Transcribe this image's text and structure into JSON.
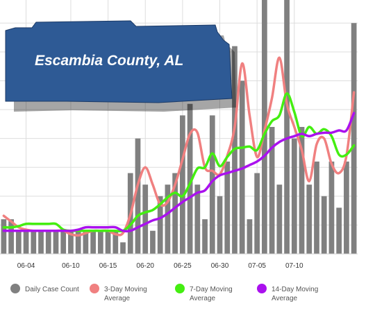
{
  "banner": {
    "title": "Escambia County, AL",
    "background": "#2e5a95"
  },
  "colors": {
    "bars": "#808080",
    "ma3": "#f08080",
    "ma7": "#44ee11",
    "ma14": "#aa11ee",
    "grid": "#dddddd"
  },
  "legend": [
    {
      "key": "bars",
      "line1": "Daily Case Count",
      "line2": ""
    },
    {
      "key": "ma3",
      "line1": "3-Day Moving",
      "line2": "Average"
    },
    {
      "key": "ma7",
      "line1": "7-Day Moving",
      "line2": "Average"
    },
    {
      "key": "ma14",
      "line1": "14-Day Moving",
      "line2": "Average"
    }
  ],
  "chart_data": {
    "type": "bar",
    "title": "Escambia County, AL",
    "x_tick_labels": [
      "06-04",
      "06-10",
      "06-15",
      "06-20",
      "06-25",
      "06-30",
      "07-05",
      "07-10"
    ],
    "x_tick_index": [
      3,
      9,
      14,
      19,
      24,
      29,
      34,
      39
    ],
    "ylim": [
      0,
      22
    ],
    "grid": true,
    "legend_position": "bottom",
    "series": [
      {
        "name": "Daily Case Count",
        "type": "bar",
        "values": [
          3,
          3,
          2,
          2,
          2,
          2,
          2,
          2,
          2,
          2,
          2,
          2,
          2,
          2,
          2,
          2,
          1,
          7,
          10,
          6,
          2,
          5,
          6,
          7,
          12,
          13,
          6,
          3,
          12,
          5,
          8,
          18,
          15,
          3,
          7,
          22,
          11,
          6,
          22,
          10,
          11,
          6,
          8,
          5,
          8,
          4,
          8,
          20
        ]
      },
      {
        "name": "3-Day Moving Average",
        "type": "line",
        "values": [
          3.3,
          2.8,
          2.3,
          2.1,
          2,
          2,
          2,
          2,
          2,
          1.7,
          1.6,
          1.8,
          2,
          2,
          2,
          1.7,
          1.8,
          3.4,
          6,
          7.5,
          6,
          4.3,
          4.5,
          6,
          8.2,
          10.4,
          10.5,
          7.5,
          7.2,
          6.9,
          8.5,
          11,
          16.5,
          12,
          8.4,
          10.7,
          13.5,
          17,
          13,
          11,
          9,
          6.3,
          9.5,
          10,
          7.8,
          7,
          8.5,
          14
        ]
      },
      {
        "name": "7-Day Moving Average",
        "type": "line",
        "values": [
          2.3,
          2.3,
          2.4,
          2.6,
          2.6,
          2.6,
          2.6,
          2.6,
          2.1,
          2,
          2,
          2,
          2,
          2,
          2,
          2,
          2,
          2.5,
          3.3,
          3.6,
          3.8,
          4.3,
          4.9,
          5.3,
          5,
          6.1,
          7.4,
          7.5,
          8.7,
          7.6,
          8.4,
          9.1,
          9.2,
          9.3,
          9,
          10.4,
          11.5,
          12,
          13.9,
          12.3,
          10.2,
          11,
          10.4,
          10.8,
          10.2,
          8.6,
          8.6,
          9.4
        ]
      },
      {
        "name": "14-Day Moving Average",
        "type": "line",
        "values": [
          2,
          2,
          2,
          2,
          2,
          2,
          2,
          2,
          2,
          2,
          2.1,
          2.3,
          2.3,
          2.3,
          2.3,
          2.3,
          2,
          2,
          2.3,
          2.6,
          2.9,
          3.1,
          3.5,
          4,
          4.5,
          4.9,
          5.3,
          5.5,
          6.3,
          6.8,
          7,
          7.2,
          7.4,
          7.7,
          8,
          8.5,
          9.2,
          9.7,
          10,
          10.2,
          10.4,
          10.2,
          10.4,
          10.5,
          10.5,
          10.7,
          10.7,
          12.2
        ]
      }
    ]
  }
}
